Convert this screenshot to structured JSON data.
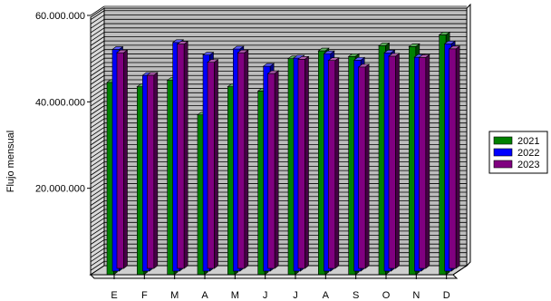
{
  "chart_data": {
    "type": "bar",
    "ylabel": "Flujo mensual",
    "xlabel": "",
    "ylim": [
      0,
      60000000
    ],
    "yticks": [
      {
        "value": 20000000,
        "label": "20.000.000"
      },
      {
        "value": 40000000,
        "label": "40.000.000"
      },
      {
        "value": 60000000,
        "label": "60.000.000"
      }
    ],
    "categories": [
      "E",
      "F",
      "M",
      "A",
      "M",
      "J",
      "J",
      "A",
      "S",
      "O",
      "N",
      "D"
    ],
    "series": [
      {
        "name": "2021",
        "color": "#008000",
        "values": [
          44500000,
          43500000,
          45000000,
          37000000,
          43500000,
          42500000,
          50000000,
          51800000,
          50500000,
          53000000,
          52800000,
          55500000
        ]
      },
      {
        "name": "2022",
        "color": "#0000ff",
        "values": [
          51300000,
          45300000,
          52900000,
          50000000,
          51400000,
          47400000,
          49300000,
          50300000,
          48800000,
          50500000,
          49500000,
          52600000
        ]
      },
      {
        "name": "2023",
        "color": "#800080",
        "values": [
          49900000,
          44700000,
          51900000,
          47700000,
          49900000,
          45100000,
          48400000,
          48100000,
          46600000,
          49100000,
          48800000,
          50800000
        ]
      }
    ],
    "legend_position": "right",
    "grid": true,
    "style": "3d"
  }
}
